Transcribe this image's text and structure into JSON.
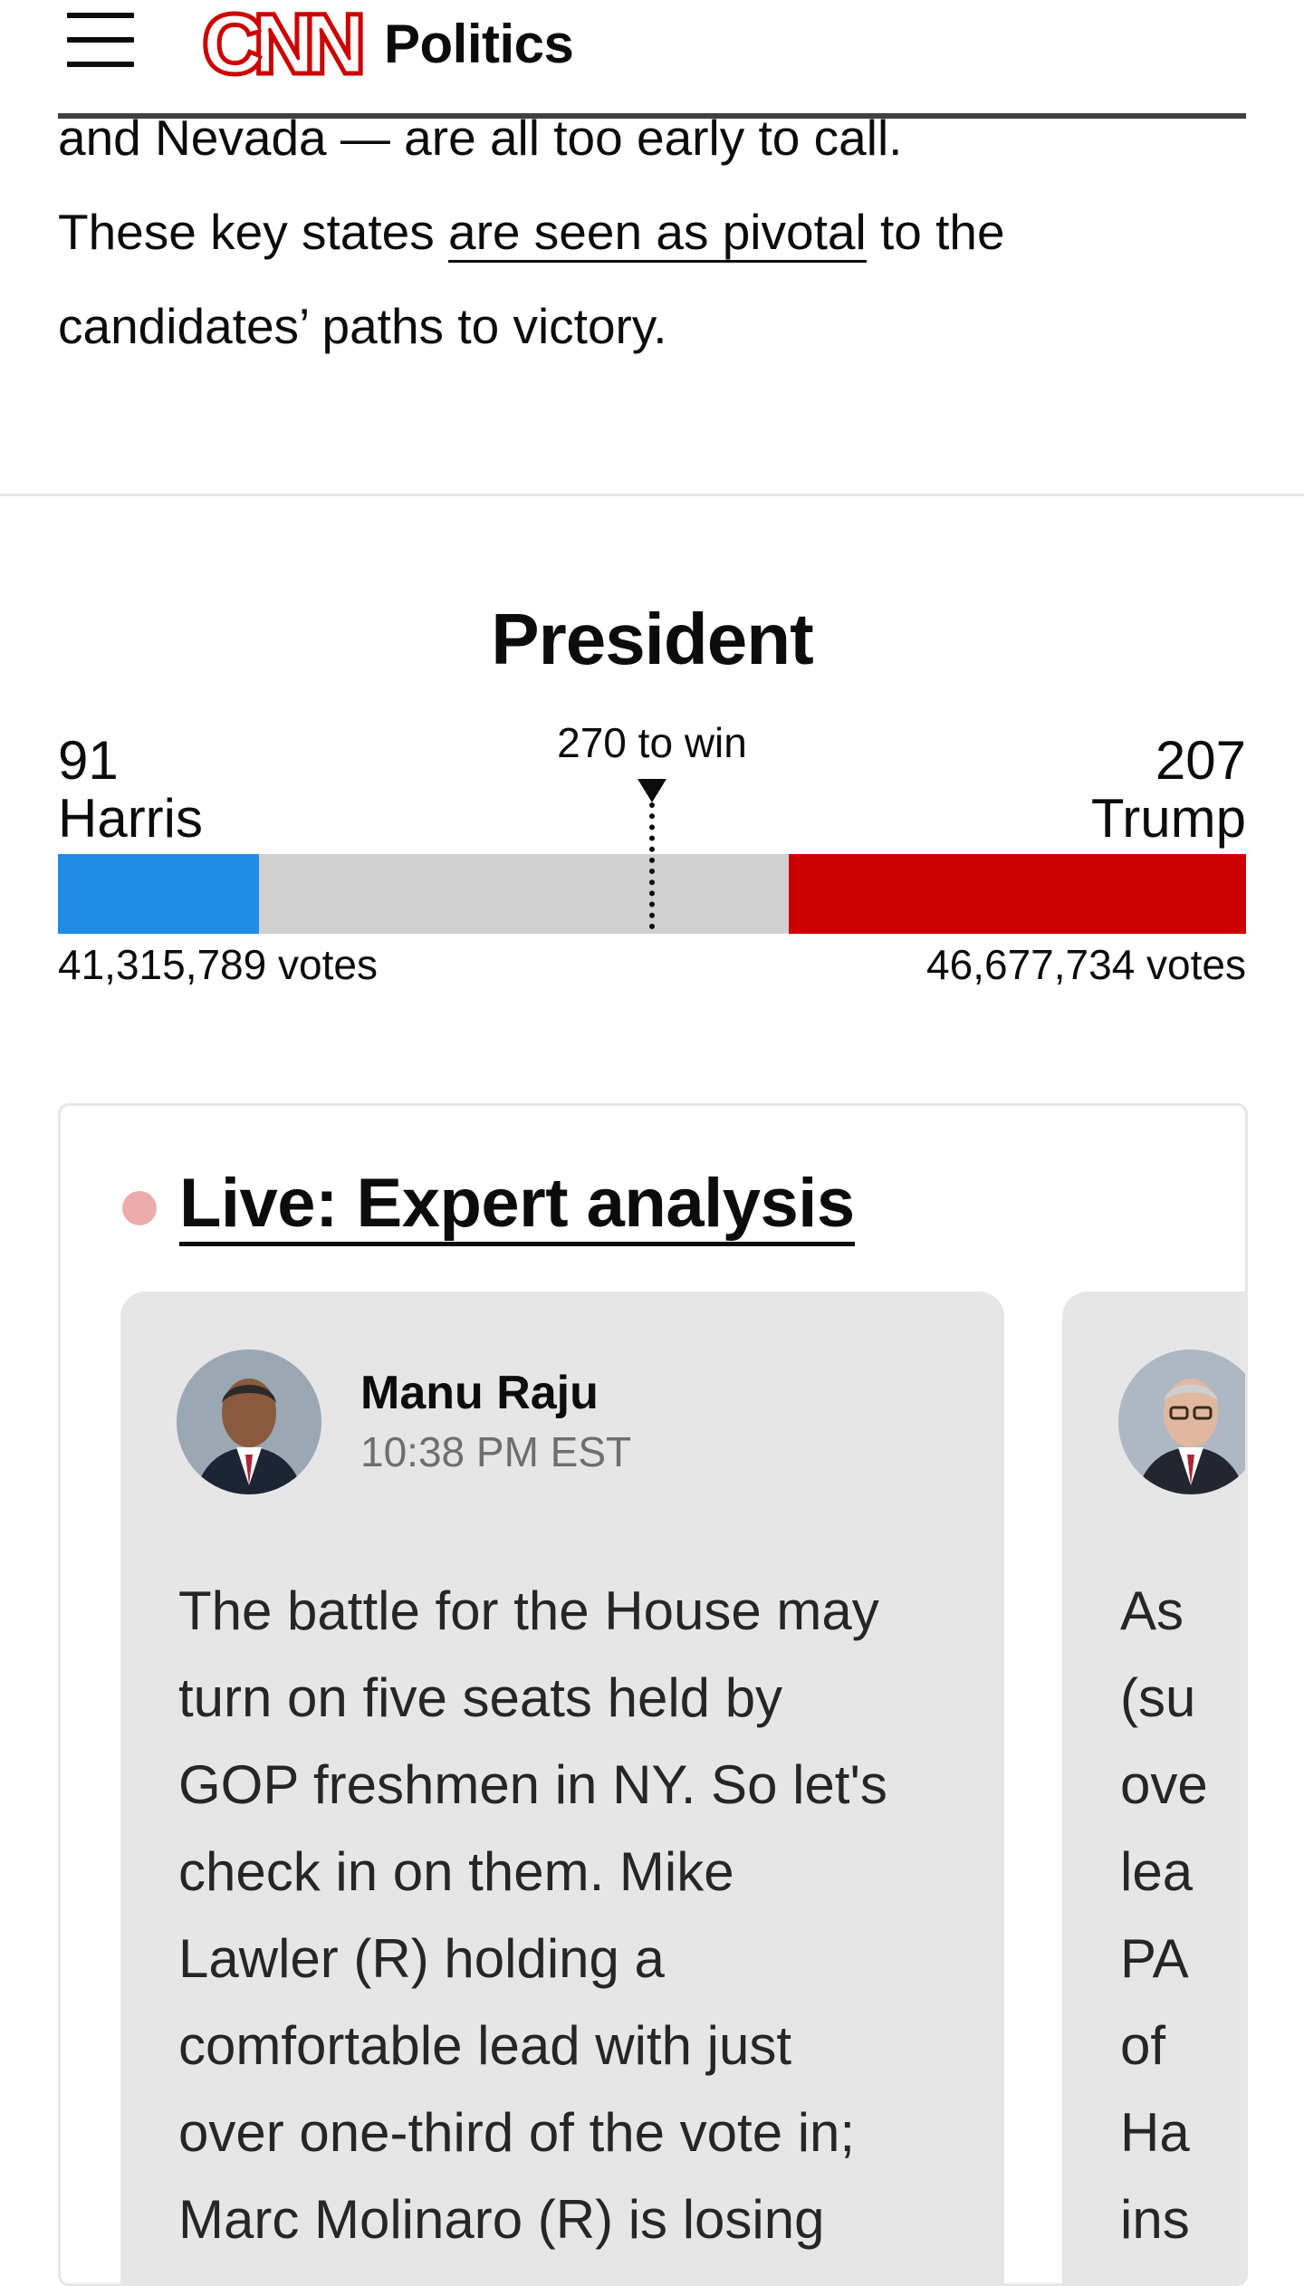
{
  "header": {
    "section": "Politics",
    "menu_icon": "hamburger-menu-icon",
    "logo_icon": "cnn-logo"
  },
  "article": {
    "line_1": "and Nevada — are all too early to call.",
    "line_2_before": "These key states ",
    "line_2_link": "are seen as pivotal",
    "line_2_after": " to the",
    "line_3": "candidates’ paths to victory."
  },
  "race": {
    "title": "President",
    "threshold_label": "270 to win",
    "total_electoral_votes": 538,
    "threshold": 270,
    "left": {
      "electoral_votes": "91",
      "name": "Harris",
      "popular_votes": "41,315,789 votes",
      "color": "#1f8ce6"
    },
    "right": {
      "electoral_votes": "207",
      "name": "Trump",
      "popular_votes": "46,677,734 votes",
      "color": "#cc0000"
    }
  },
  "live": {
    "title": "Live: Expert analysis",
    "dot_color": "#ecacac",
    "cards": [
      {
        "author": "Manu Raju",
        "time": "10:38 PM EST",
        "lines": [
          "The battle for the House may",
          "turn on five seats held by",
          "GOP freshmen in NY. So let's",
          "check in on them. Mike",
          "Lawler (R) holding a",
          "comfortable lead with just",
          "over one-third of the vote in;",
          "Marc Molinaro (R) is losing"
        ]
      },
      {
        "author": "",
        "time": "",
        "lines": [
          "As",
          "(su",
          "ove",
          "lea",
          "PA",
          "of",
          "Ha",
          "ins"
        ]
      }
    ]
  }
}
